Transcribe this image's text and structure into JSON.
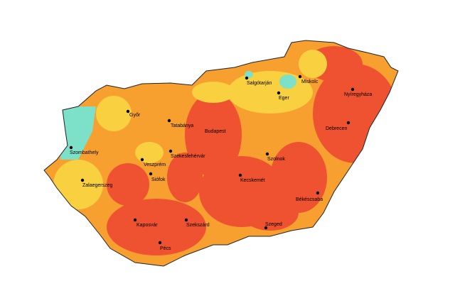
{
  "map": {
    "cities": [
      "Győr",
      "Tatabánya",
      "Budapest",
      "Szombathely",
      "Veszprém",
      "Székesfehérvár",
      "Siófok",
      "Zalaegerszeg",
      "Kaposvár",
      "Szekszárd",
      "Pécs",
      "Kecskemét",
      "Szolnok",
      "Szeged",
      "Békéscsaba",
      "Debrecen",
      "Nyíregyháza",
      "Miskolc",
      "Eger",
      "Salgótarján"
    ]
  }
}
